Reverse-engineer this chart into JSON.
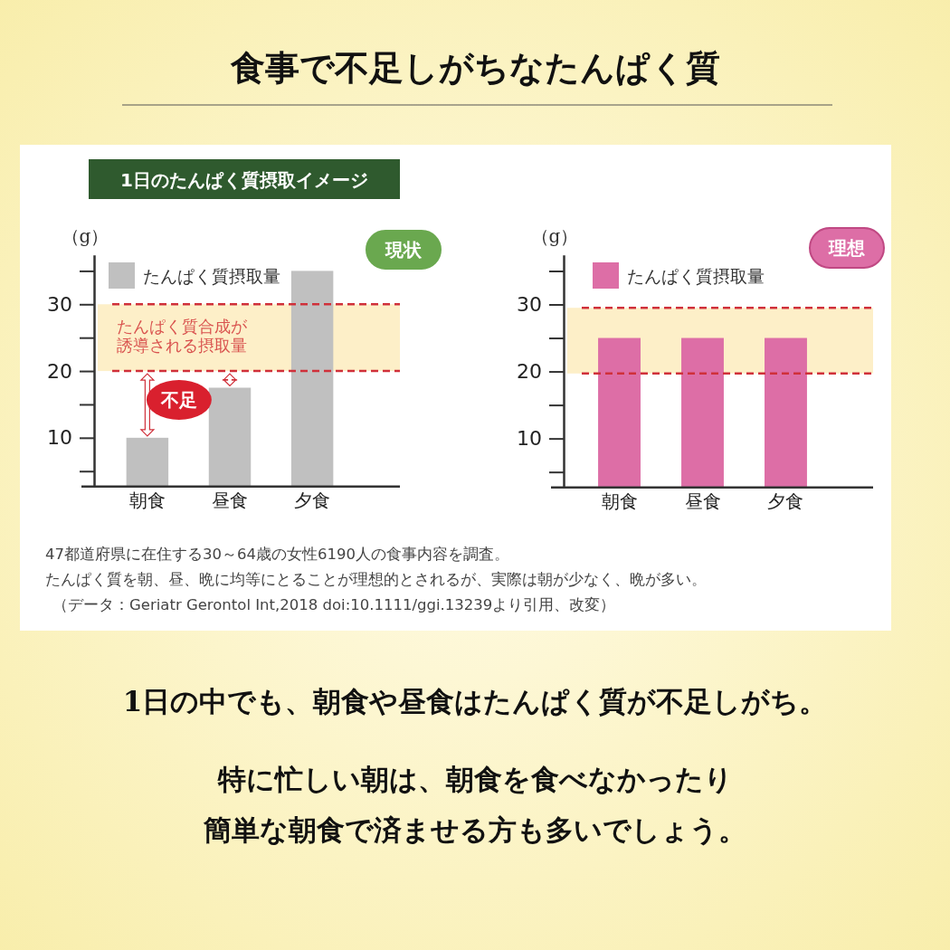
{
  "chart_data": [
    {
      "type": "bar",
      "title": "食事で不足しがちなたんぱく質",
      "subtitle": "1日のたんぱく質摂取イメージ",
      "ylabel": "（g）",
      "categories": [
        "朝食",
        "昼食",
        "夕食"
      ],
      "series": [
        {
          "name": "たんぱく質摂取量",
          "color": "#c0c0c0",
          "values": [
            10,
            17.5,
            35
          ]
        }
      ],
      "ylim": [
        2.7,
        37.4
      ],
      "yticks": [
        {
          "value": 5,
          "label": null
        },
        10,
        {
          "value": 15,
          "label": null
        },
        20,
        {
          "value": 25,
          "label": null
        },
        30,
        {
          "value": 35,
          "label": null
        }
      ],
      "legend": "top left",
      "ref_lines": [
        {
          "axis": "y",
          "value": 30,
          "color": "#d0303a",
          "line_style": "dashed"
        },
        {
          "axis": "y",
          "value": 20,
          "color": "#d0303a",
          "line_style": "dashed"
        }
      ],
      "bands": [
        {
          "axis": "y",
          "from": 20,
          "to": 30,
          "label": "たんぱく質合成が誘導される摂取量",
          "color": "#fdefc8"
        }
      ],
      "annotations": [
        "不足",
        "現状",
        "47都道府県に在住する30～64歳の女性6190人の食事内容を調査。",
        "たんぱく質を朝、昼、晩に均等にとることが理想的とされるが、実際は朝が少なく、晩が多い。",
        "（データ：Geriatr Gerontol Int,2018 doi:10.1111/ggi.13239より引用、改変）",
        "1日の中でも、朝食や昼食はたんぱく質が不足しがち。",
        "特に忙しい朝は、朝食を食べなかったり",
        "簡単な朝食で済ませる方も多いでしょう。"
      ]
    },
    {
      "type": "bar",
      "ylabel": "（g）",
      "categories": [
        "朝食",
        "昼食",
        "夕食"
      ],
      "series": [
        {
          "name": "たんぱく質摂取量",
          "color": "#dd6ea6",
          "values": [
            25,
            25,
            25
          ]
        }
      ],
      "ylim": [
        2.7,
        37.4
      ],
      "yticks": [
        {
          "value": 5,
          "label": null
        },
        10,
        {
          "value": 15,
          "label": null
        },
        20,
        {
          "value": 25,
          "label": null
        },
        30,
        {
          "value": 35,
          "label": null
        }
      ],
      "legend": "top left",
      "ref_lines": [
        {
          "axis": "y",
          "value": 29.5,
          "color": "#d0303a",
          "line_style": "dashed"
        },
        {
          "axis": "y",
          "value": 19.7,
          "color": "#d0303a",
          "line_style": "dashed"
        }
      ],
      "bands": [
        {
          "axis": "y",
          "from": 19.7,
          "to": 29.5,
          "color": "#fdefc8"
        }
      ],
      "annotations": [
        "理想"
      ]
    }
  ]
}
